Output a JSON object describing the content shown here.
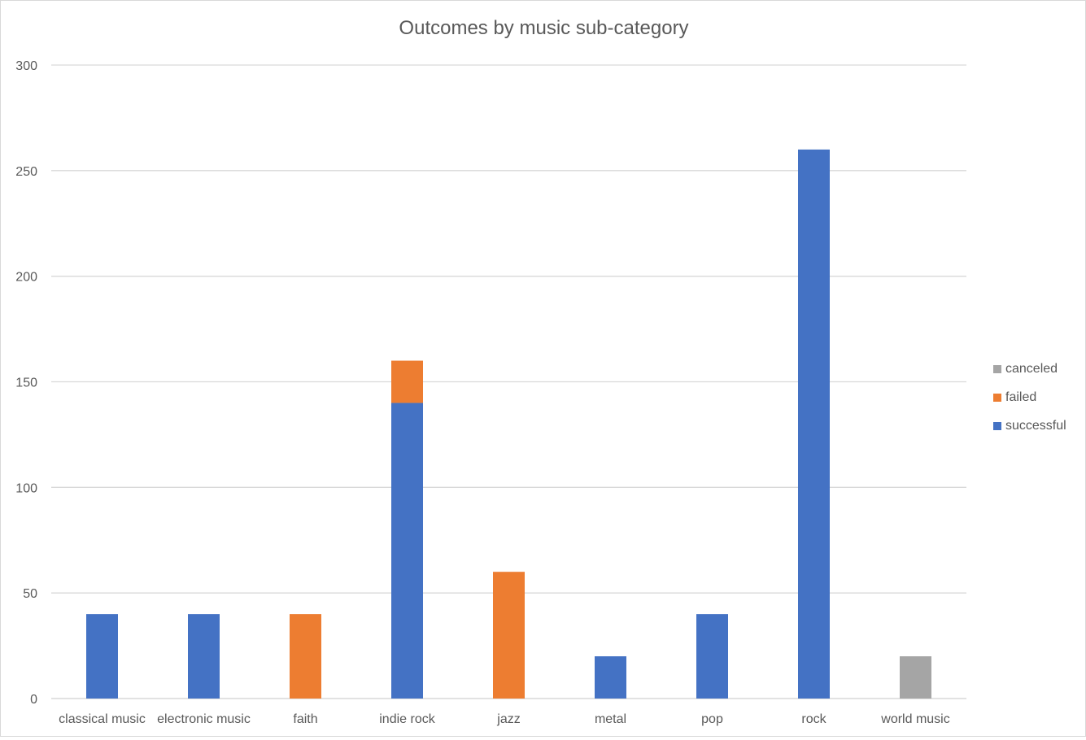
{
  "chart_data": {
    "type": "bar",
    "stacked": true,
    "title": "Outcomes by music sub-category",
    "xlabel": "",
    "ylabel": "",
    "ylim": [
      0,
      300
    ],
    "yticks": [
      0,
      50,
      100,
      150,
      200,
      250,
      300
    ],
    "grid": true,
    "legend_position": "right",
    "categories": [
      "classical music",
      "electronic music",
      "faith",
      "indie rock",
      "jazz",
      "metal",
      "pop",
      "rock",
      "world music"
    ],
    "series": [
      {
        "name": "successful",
        "color": "#4472C4",
        "values": [
          40,
          40,
          0,
          140,
          0,
          20,
          40,
          260,
          0
        ]
      },
      {
        "name": "failed",
        "color": "#ED7D31",
        "values": [
          0,
          0,
          40,
          20,
          60,
          0,
          0,
          0,
          0
        ]
      },
      {
        "name": "canceled",
        "color": "#A5A5A5",
        "values": [
          0,
          0,
          0,
          0,
          0,
          0,
          0,
          0,
          20
        ]
      }
    ],
    "legend_order": [
      "canceled",
      "failed",
      "successful"
    ]
  }
}
